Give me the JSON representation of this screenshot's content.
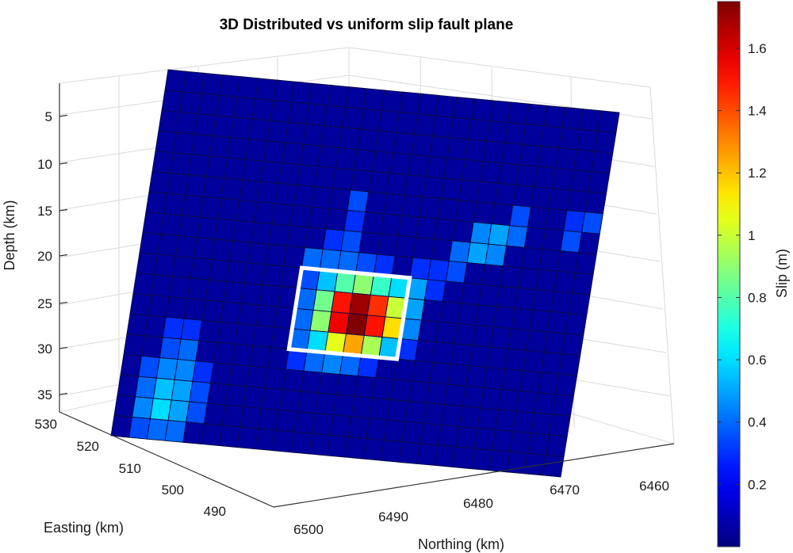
{
  "chart_data": {
    "type": "heatmap",
    "title": "3D Distributed vs uniform slip fault plane",
    "zlabel": "Depth (km)",
    "xlabel": "Easting (km)",
    "ylabel": "Northing (km)",
    "depth_ticks": [
      "5",
      "10",
      "15",
      "20",
      "25",
      "30",
      "35"
    ],
    "easting_ticks": [
      "530",
      "520",
      "510",
      "500",
      "490"
    ],
    "northing_ticks": [
      "6500",
      "6490",
      "6480",
      "6470",
      "6460"
    ],
    "colorbar": {
      "label": "Slip (m)",
      "min": 0,
      "max": 1.75,
      "ticks": [
        "0.2",
        "0.4",
        "0.6",
        "0.8",
        "1",
        "1.2",
        "1.4",
        "1.6"
      ],
      "colormap": "jet"
    },
    "fault_grid": {
      "cols": 25,
      "rows": 18,
      "background_slip": 0.05,
      "slip_patches": [
        {
          "col": 11,
          "row": 5,
          "slip": 0.35
        },
        {
          "col": 11,
          "row": 6,
          "slip": 0.3
        },
        {
          "col": 10,
          "row": 7,
          "slip": 0.3
        },
        {
          "col": 11,
          "row": 7,
          "slip": 0.35
        },
        {
          "col": 9,
          "row": 8,
          "slip": 0.4
        },
        {
          "col": 10,
          "row": 8,
          "slip": 0.4
        },
        {
          "col": 11,
          "row": 8,
          "slip": 0.4
        },
        {
          "col": 12,
          "row": 8,
          "slip": 0.35
        },
        {
          "col": 13,
          "row": 8,
          "slip": 0.3
        },
        {
          "col": 9,
          "row": 9,
          "slip": 0.35
        },
        {
          "col": 10,
          "row": 9,
          "slip": 0.55
        },
        {
          "col": 11,
          "row": 9,
          "slip": 0.8
        },
        {
          "col": 12,
          "row": 9,
          "slip": 0.9
        },
        {
          "col": 13,
          "row": 9,
          "slip": 0.75
        },
        {
          "col": 14,
          "row": 9,
          "slip": 0.6
        },
        {
          "col": 15,
          "row": 9,
          "slip": 0.5
        },
        {
          "col": 9,
          "row": 10,
          "slip": 0.4
        },
        {
          "col": 10,
          "row": 10,
          "slip": 0.85
        },
        {
          "col": 11,
          "row": 10,
          "slip": 1.5
        },
        {
          "col": 12,
          "row": 10,
          "slip": 1.7
        },
        {
          "col": 13,
          "row": 10,
          "slip": 1.45
        },
        {
          "col": 14,
          "row": 10,
          "slip": 1.0
        },
        {
          "col": 15,
          "row": 10,
          "slip": 0.5
        },
        {
          "col": 9,
          "row": 11,
          "slip": 0.4
        },
        {
          "col": 10,
          "row": 11,
          "slip": 0.9
        },
        {
          "col": 11,
          "row": 11,
          "slip": 1.55
        },
        {
          "col": 12,
          "row": 11,
          "slip": 1.75
        },
        {
          "col": 13,
          "row": 11,
          "slip": 1.5
        },
        {
          "col": 14,
          "row": 11,
          "slip": 1.15
        },
        {
          "col": 15,
          "row": 11,
          "slip": 0.45
        },
        {
          "col": 9,
          "row": 12,
          "slip": 0.4
        },
        {
          "col": 10,
          "row": 12,
          "slip": 0.6
        },
        {
          "col": 11,
          "row": 12,
          "slip": 1.05
        },
        {
          "col": 12,
          "row": 12,
          "slip": 1.25
        },
        {
          "col": 13,
          "row": 12,
          "slip": 0.95
        },
        {
          "col": 14,
          "row": 12,
          "slip": 0.55
        },
        {
          "col": 15,
          "row": 12,
          "slip": 0.3
        },
        {
          "col": 9,
          "row": 13,
          "slip": 0.3
        },
        {
          "col": 10,
          "row": 13,
          "slip": 0.4
        },
        {
          "col": 11,
          "row": 13,
          "slip": 0.45
        },
        {
          "col": 12,
          "row": 13,
          "slip": 0.4
        },
        {
          "col": 13,
          "row": 13,
          "slip": 0.3
        },
        {
          "col": 15,
          "row": 8,
          "slip": 0.3
        },
        {
          "col": 16,
          "row": 8,
          "slip": 0.3
        },
        {
          "col": 16,
          "row": 9,
          "slip": 0.3
        },
        {
          "col": 17,
          "row": 7,
          "slip": 0.4
        },
        {
          "col": 17,
          "row": 8,
          "slip": 0.35
        },
        {
          "col": 18,
          "row": 6,
          "slip": 0.45
        },
        {
          "col": 18,
          "row": 7,
          "slip": 0.5
        },
        {
          "col": 19,
          "row": 6,
          "slip": 0.5
        },
        {
          "col": 19,
          "row": 7,
          "slip": 0.45
        },
        {
          "col": 20,
          "row": 5,
          "slip": 0.35
        },
        {
          "col": 20,
          "row": 6,
          "slip": 0.4
        },
        {
          "col": 23,
          "row": 5,
          "slip": 0.3
        },
        {
          "col": 23,
          "row": 6,
          "slip": 0.35
        },
        {
          "col": 24,
          "row": 5,
          "slip": 0.35
        },
        {
          "col": 2,
          "row": 12,
          "slip": 0.3
        },
        {
          "col": 3,
          "row": 12,
          "slip": 0.3
        },
        {
          "col": 2,
          "row": 13,
          "slip": 0.35
        },
        {
          "col": 3,
          "row": 13,
          "slip": 0.4
        },
        {
          "col": 1,
          "row": 14,
          "slip": 0.35
        },
        {
          "col": 2,
          "row": 14,
          "slip": 0.45
        },
        {
          "col": 3,
          "row": 14,
          "slip": 0.45
        },
        {
          "col": 4,
          "row": 14,
          "slip": 0.3
        },
        {
          "col": 1,
          "row": 15,
          "slip": 0.4
        },
        {
          "col": 2,
          "row": 15,
          "slip": 0.55
        },
        {
          "col": 3,
          "row": 15,
          "slip": 0.5
        },
        {
          "col": 4,
          "row": 15,
          "slip": 0.35
        },
        {
          "col": 1,
          "row": 16,
          "slip": 0.45
        },
        {
          "col": 2,
          "row": 16,
          "slip": 0.6
        },
        {
          "col": 3,
          "row": 16,
          "slip": 0.5
        },
        {
          "col": 4,
          "row": 16,
          "slip": 0.35
        },
        {
          "col": 1,
          "row": 17,
          "slip": 0.35
        },
        {
          "col": 2,
          "row": 17,
          "slip": 0.4
        },
        {
          "col": 3,
          "row": 17,
          "slip": 0.4
        }
      ],
      "uniform_slip_outline": {
        "col_start": 9,
        "row_start": 9,
        "col_end": 15,
        "row_end": 13,
        "color": "#ffffff"
      }
    }
  }
}
